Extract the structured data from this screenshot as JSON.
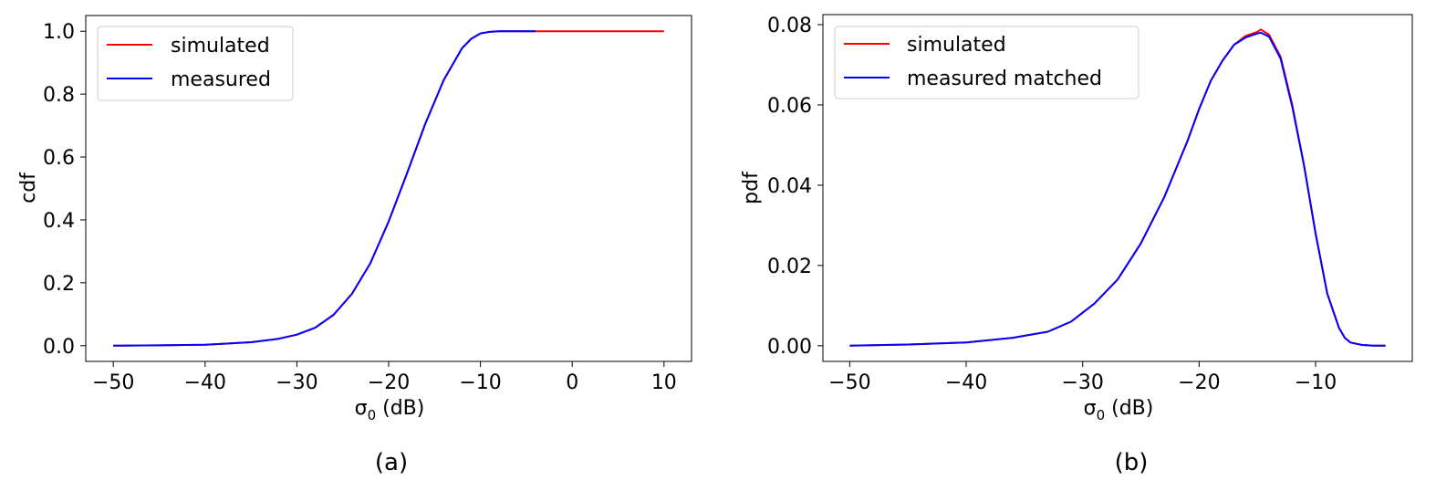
{
  "chart_data": [
    {
      "type": "line",
      "caption": "(a)",
      "xlabel": "σ₀ (dB)",
      "ylabel": "cdf",
      "xlim": [
        -53,
        13
      ],
      "ylim": [
        -0.05,
        1.05
      ],
      "xticks": [
        -50,
        -40,
        -30,
        -20,
        -10,
        0,
        10
      ],
      "xtick_labels": [
        "−50",
        "−40",
        "−30",
        "−20",
        "−10",
        "0",
        "10"
      ],
      "yticks": [
        0.0,
        0.2,
        0.4,
        0.6,
        0.8,
        1.0
      ],
      "ytick_labels": [
        "0.0",
        "0.2",
        "0.4",
        "0.6",
        "0.8",
        "1.0"
      ],
      "legend_position": "top-left",
      "series": [
        {
          "name": "simulated",
          "color": "#ff0000",
          "x": [
            -50,
            -45,
            -40,
            -35,
            -32,
            -30,
            -28,
            -26,
            -24,
            -22,
            -20,
            -18,
            -16,
            -14,
            -12,
            -11,
            -10,
            -9,
            -8,
            -7,
            -6,
            -4,
            0,
            5,
            10
          ],
          "y": [
            0.0,
            0.001,
            0.003,
            0.011,
            0.022,
            0.035,
            0.057,
            0.098,
            0.165,
            0.262,
            0.395,
            0.548,
            0.706,
            0.845,
            0.946,
            0.976,
            0.993,
            0.998,
            1.0,
            1.0,
            1.0,
            1.0,
            1.0,
            1.0,
            1.0
          ]
        },
        {
          "name": "measured",
          "color": "#0000ff",
          "x": [
            -50,
            -45,
            -40,
            -35,
            -32,
            -30,
            -28,
            -26,
            -24,
            -22,
            -20,
            -18,
            -16,
            -14,
            -12,
            -11,
            -10,
            -9,
            -8,
            -7,
            -6,
            -4
          ],
          "y": [
            0.0,
            0.001,
            0.003,
            0.011,
            0.022,
            0.035,
            0.057,
            0.098,
            0.165,
            0.262,
            0.395,
            0.548,
            0.706,
            0.845,
            0.946,
            0.976,
            0.993,
            0.998,
            1.0,
            1.0,
            1.0,
            1.0
          ]
        }
      ]
    },
    {
      "type": "line",
      "caption": "(b)",
      "xlabel": "σ₀ (dB)",
      "ylabel": "pdf",
      "xlim": [
        -52.3,
        -1.7
      ],
      "ylim": [
        -0.0039,
        0.0825
      ],
      "xticks": [
        -50,
        -40,
        -30,
        -20,
        -10
      ],
      "xtick_labels": [
        "−50",
        "−40",
        "−30",
        "−20",
        "−10"
      ],
      "yticks": [
        0.0,
        0.02,
        0.04,
        0.06,
        0.08
      ],
      "ytick_labels": [
        "0.00",
        "0.02",
        "0.04",
        "0.06",
        "0.08"
      ],
      "legend_position": "top-left",
      "series": [
        {
          "name": "simulated",
          "color": "#ff0000",
          "x": [
            -50,
            -45,
            -40,
            -36,
            -33,
            -31,
            -29,
            -27,
            -25,
            -23,
            -21,
            -20,
            -19,
            -18,
            -17,
            -16,
            -15,
            -14.7,
            -14,
            -13,
            -12,
            -11,
            -10,
            -9,
            -8,
            -7.5,
            -7,
            -6,
            -5,
            -4
          ],
          "y": [
            0.0,
            0.0003,
            0.0008,
            0.002,
            0.0035,
            0.006,
            0.0105,
            0.0165,
            0.0255,
            0.037,
            0.051,
            0.059,
            0.066,
            0.071,
            0.075,
            0.0772,
            0.0782,
            0.0788,
            0.0775,
            0.072,
            0.06,
            0.045,
            0.028,
            0.013,
            0.0045,
            0.002,
            0.0008,
            0.0002,
            0.0,
            0.0
          ]
        },
        {
          "name": "measured matched",
          "color": "#0000ff",
          "x": [
            -50,
            -45,
            -40,
            -36,
            -33,
            -31,
            -29,
            -27,
            -25,
            -23,
            -21,
            -20,
            -19,
            -18,
            -17,
            -16,
            -15,
            -14.7,
            -14,
            -13,
            -12,
            -11,
            -10,
            -9,
            -8,
            -7.5,
            -7,
            -6,
            -5,
            -4
          ],
          "y": [
            0.0,
            0.0003,
            0.0008,
            0.002,
            0.0035,
            0.006,
            0.0105,
            0.0165,
            0.0255,
            0.037,
            0.051,
            0.059,
            0.066,
            0.071,
            0.075,
            0.0768,
            0.0778,
            0.078,
            0.077,
            0.0715,
            0.0595,
            0.045,
            0.028,
            0.013,
            0.0045,
            0.002,
            0.0008,
            0.0002,
            0.0,
            0.0
          ]
        }
      ]
    }
  ]
}
